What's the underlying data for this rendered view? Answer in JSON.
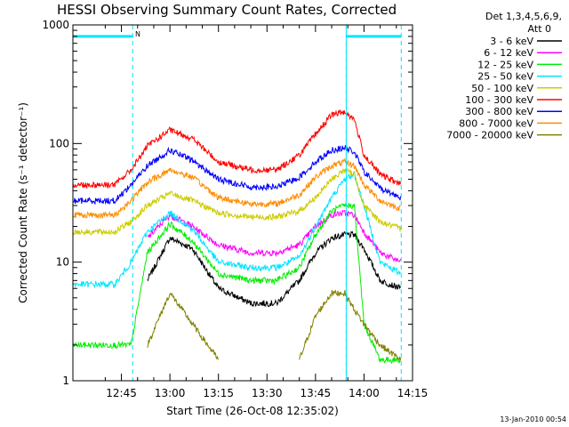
{
  "colors": {
    "axis": "#000000",
    "marker": "#00e5ff"
  },
  "chart_data": {
    "type": "line",
    "title": "HESSI Observing Summary Count Rates, Corrected",
    "xlabel": "Start Time (26-Oct-08 12:35:02)",
    "ylabel": "Corrected Count Rate (s⁻¹ detector⁻¹)",
    "y_scale": "log",
    "ylim": [
      1,
      1000
    ],
    "xlim": [
      -5,
      100
    ],
    "x_unit": "minutes after 12:35:02",
    "x_ticks": [
      {
        "label": "12:45",
        "value": 10
      },
      {
        "label": "13:00",
        "value": 25
      },
      {
        "label": "13:15",
        "value": 40
      },
      {
        "label": "13:30",
        "value": 55
      },
      {
        "label": "13:45",
        "value": 70
      },
      {
        "label": "14:00",
        "value": 85
      },
      {
        "label": "14:15",
        "value": 100
      }
    ],
    "y_ticks": [
      {
        "label": "1",
        "value": 1
      },
      {
        "label": "10",
        "value": 10
      },
      {
        "label": "100",
        "value": 100
      },
      {
        "label": "1000",
        "value": 1000
      }
    ],
    "legend": {
      "header_line1": "Det 1,3,4,5,6,9,",
      "header_line2": "Att 0",
      "placement": "outside-right"
    },
    "annotations": {
      "night_label": "N",
      "timestamp": "13-Jan-2010 00:54"
    },
    "markers": {
      "dashed_lines_x": [
        13.5,
        79.5,
        96.5
      ],
      "solid_line_x": 79.5,
      "bar_segments": [
        [
          -5,
          13.5
        ],
        [
          79.5,
          96.5
        ]
      ],
      "bar_y": 800
    },
    "x": [
      -5,
      8,
      13,
      18,
      25,
      32,
      40,
      50,
      58,
      65,
      70,
      75,
      79,
      82,
      85,
      90,
      96.5
    ],
    "series": [
      {
        "name": "3 - 6 keV",
        "color": "#000000",
        "values": [
          null,
          null,
          null,
          7,
          16,
          13,
          6,
          4.5,
          4.5,
          7,
          12,
          16,
          17,
          17,
          13,
          7,
          6
        ]
      },
      {
        "name": "6 - 12 keV",
        "color": "#ff00ff",
        "values": [
          null,
          null,
          null,
          16,
          25,
          20,
          14,
          12,
          12,
          14,
          20,
          25,
          26,
          25,
          18,
          12,
          10
        ]
      },
      {
        "name": "12 - 25 keV",
        "color": "#00ee00",
        "values": [
          2,
          2,
          2,
          12,
          21,
          15,
          8,
          7,
          7,
          9,
          17,
          27,
          30,
          30,
          3,
          1.5,
          1.5
        ]
      },
      {
        "name": "25 - 50 keV",
        "color": "#00e5ff",
        "values": [
          6.5,
          6.5,
          10,
          18,
          26,
          19,
          10,
          9,
          9,
          11,
          20,
          35,
          50,
          55,
          30,
          10,
          8
        ]
      },
      {
        "name": "50 - 100 keV",
        "color": "#cccc00",
        "values": [
          18,
          18,
          22,
          30,
          38,
          33,
          26,
          24,
          24,
          27,
          35,
          50,
          60,
          55,
          30,
          22,
          19
        ]
      },
      {
        "name": "100 - 300 keV",
        "color": "#ff0000",
        "values": [
          45,
          45,
          60,
          95,
          130,
          110,
          70,
          60,
          60,
          80,
          120,
          175,
          185,
          160,
          80,
          55,
          45
        ]
      },
      {
        "name": "300 - 800 keV",
        "color": "#0000ff",
        "values": [
          33,
          33,
          45,
          65,
          88,
          72,
          50,
          43,
          43,
          52,
          70,
          88,
          92,
          85,
          58,
          42,
          35
        ]
      },
      {
        "name": "800 - 7000 keV",
        "color": "#ff8c00",
        "values": [
          25,
          25,
          33,
          47,
          60,
          52,
          35,
          31,
          31,
          37,
          52,
          65,
          70,
          65,
          45,
          33,
          28
        ]
      },
      {
        "name": "7000 - 20000 keV",
        "color": "#808000",
        "values": [
          null,
          null,
          null,
          2,
          5.5,
          3,
          1.5,
          null,
          null,
          1.5,
          3.5,
          5.5,
          5.5,
          4,
          3,
          2,
          1.5
        ]
      }
    ]
  }
}
